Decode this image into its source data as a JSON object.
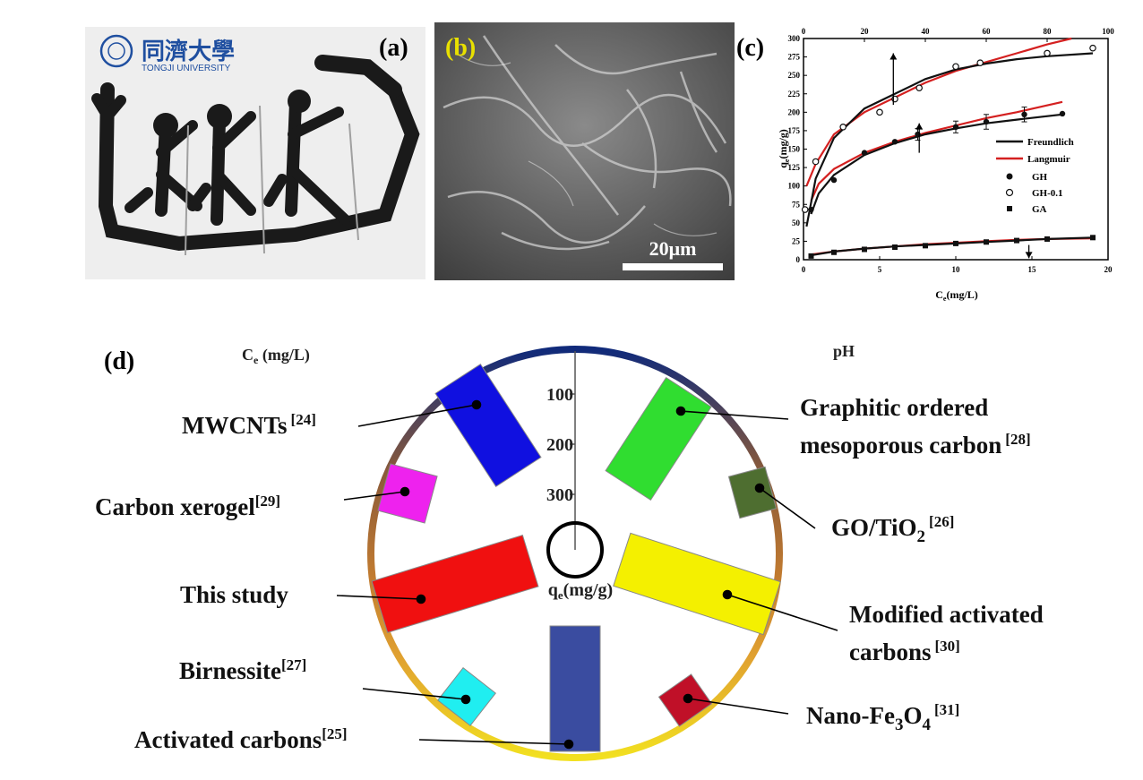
{
  "logo": {
    "chinese_name": "同濟大學",
    "english_name": "TONGJI UNIVERSITY",
    "brand_color": "#1f4fa0"
  },
  "panels": {
    "a": "(a)",
    "b": "(b)",
    "c": "(c)",
    "d": "(d)"
  },
  "sem": {
    "scale_bar_label": "20μm"
  },
  "chart_data": [
    {
      "type": "scatter",
      "panel": "c",
      "ylabel": "qe(mg/g)",
      "ylabel_main": "q",
      "ylabel_sub": "e",
      "ylabel_unit": "(mg/g)",
      "xlabel_main": "C",
      "xlabel_sub": "e",
      "xlabel_unit": "(mg/L)",
      "x_bottom": {
        "range": [
          0,
          20
        ],
        "ticks": [
          "0",
          "5",
          "10",
          "15",
          "20"
        ]
      },
      "x_top": {
        "range": [
          0,
          100
        ],
        "ticks": [
          "0",
          "20",
          "40",
          "60",
          "80",
          "100"
        ]
      },
      "y": {
        "range": [
          0,
          300
        ],
        "ticks": [
          "0",
          "25",
          "50",
          "75",
          "100",
          "125",
          "150",
          "175",
          "200",
          "225",
          "250",
          "275",
          "300"
        ]
      },
      "legend": {
        "position": "right",
        "lines": [
          {
            "label": "Freundlich",
            "color": "#111111"
          },
          {
            "label": "Langmuir",
            "color": "#d42020"
          }
        ],
        "markers": [
          {
            "label": "GH",
            "style": "filled-circle"
          },
          {
            "label": "GH-0.1",
            "style": "open-circle"
          },
          {
            "label": "GA",
            "style": "filled-square"
          }
        ]
      },
      "series": [
        {
          "name": "GH",
          "axis": "bottom",
          "marker": "filled-circle",
          "points": [
            [
              0.5,
              68
            ],
            [
              2,
              108
            ],
            [
              4,
              145
            ],
            [
              6,
              160
            ],
            [
              7.5,
              170
            ],
            [
              10,
              180
            ],
            [
              12,
              187
            ],
            [
              14.5,
              197
            ],
            [
              17,
              198
            ]
          ],
          "error": [
            0,
            0,
            0,
            0,
            8,
            8,
            10,
            10,
            0
          ],
          "freundlich": [
            [
              0.5,
              62
            ],
            [
              1,
              90
            ],
            [
              2,
              115
            ],
            [
              4,
              142
            ],
            [
              6,
              158
            ],
            [
              8,
              170
            ],
            [
              10,
              178
            ],
            [
              12,
              185
            ],
            [
              14,
              190
            ],
            [
              17,
              197
            ]
          ],
          "langmuir": [
            [
              0.5,
              80
            ],
            [
              1,
              103
            ],
            [
              2,
              123
            ],
            [
              4,
              145
            ],
            [
              6,
              160
            ],
            [
              8,
              172
            ],
            [
              10,
              182
            ],
            [
              12,
              192
            ],
            [
              14,
              200
            ],
            [
              17,
              214
            ]
          ]
        },
        {
          "name": "GH-0.1",
          "axis": "top",
          "marker": "open-circle",
          "points": [
            [
              0.5,
              68
            ],
            [
              4,
              133
            ],
            [
              13,
              180
            ],
            [
              25,
              200
            ],
            [
              30,
              218
            ],
            [
              38,
              233
            ],
            [
              50,
              262
            ],
            [
              58,
              267
            ],
            [
              80,
              280
            ],
            [
              95,
              287
            ]
          ],
          "freundlich": [
            [
              1,
              45
            ],
            [
              4,
              110
            ],
            [
              10,
              165
            ],
            [
              20,
              205
            ],
            [
              30,
              225
            ],
            [
              40,
              245
            ],
            [
              50,
              258
            ],
            [
              60,
              266
            ],
            [
              70,
              272
            ],
            [
              80,
              276
            ],
            [
              95,
              280
            ]
          ],
          "langmuir": [
            [
              1,
              100
            ],
            [
              4,
              130
            ],
            [
              10,
              170
            ],
            [
              20,
              200
            ],
            [
              30,
              220
            ],
            [
              40,
              240
            ],
            [
              50,
              256
            ],
            [
              60,
              268
            ],
            [
              70,
              280
            ],
            [
              80,
              292
            ],
            [
              88,
              300
            ]
          ]
        },
        {
          "name": "GA",
          "axis": "bottom",
          "marker": "filled-square",
          "points": [
            [
              0.5,
              5
            ],
            [
              2,
              10
            ],
            [
              4,
              14
            ],
            [
              6,
              17
            ],
            [
              8,
              19
            ],
            [
              10,
              22
            ],
            [
              12,
              24
            ],
            [
              14,
              26
            ],
            [
              16,
              28
            ],
            [
              19,
              30
            ]
          ],
          "freundlich": [
            [
              0.5,
              6
            ],
            [
              2,
              11
            ],
            [
              4,
              15
            ],
            [
              6,
              18
            ],
            [
              8,
              20
            ],
            [
              10,
              22
            ],
            [
              12,
              24
            ],
            [
              14,
              26
            ],
            [
              16,
              28
            ],
            [
              19,
              30
            ]
          ],
          "langmuir": [
            [
              0.5,
              7
            ],
            [
              2,
              11
            ],
            [
              4,
              15
            ],
            [
              6,
              18
            ],
            [
              8,
              21
            ],
            [
              10,
              23
            ],
            [
              12,
              25
            ],
            [
              14,
              27
            ],
            [
              16,
              28
            ],
            [
              19,
              29
            ]
          ]
        }
      ],
      "arrows": [
        {
          "series": "GH-0.1",
          "points_to": "top"
        },
        {
          "series": "GH",
          "points_to": "top"
        },
        {
          "series": "GA",
          "points_to": "bottom"
        }
      ]
    },
    {
      "type": "radial-comparison",
      "panel": "d",
      "corner_labels": {
        "left": "Ce (mg/L)",
        "left_main": "C",
        "left_sub": "e",
        "left_unit": " (mg/L)",
        "right": "pH"
      },
      "center_axis": {
        "label": "qe(mg/g)",
        "label_main": "q",
        "label_sub": "e",
        "label_unit": "(mg/g)",
        "ticks": [
          "100",
          "200",
          "300"
        ],
        "tick_values": [
          100,
          200,
          300
        ]
      },
      "adsorbents": [
        {
          "id": "mwcnts",
          "name": "MWCNTs",
          "ref": "[24]",
          "color": "#1010e0"
        },
        {
          "id": "graphitic",
          "name_line1": "Graphitic ordered",
          "name_line2": "mesoporous carbon",
          "ref": "[28]",
          "color": "#30dd30"
        },
        {
          "id": "xerogel",
          "name": "Carbon xerogel",
          "ref": "[29]",
          "color": "#ee22ee"
        },
        {
          "id": "goti",
          "name_main": "GO/TiO",
          "name_sub": "2",
          "ref": "[26]",
          "color": "#4e6e30"
        },
        {
          "id": "thisstudy",
          "name": "This study",
          "color": "#f01010"
        },
        {
          "id": "modified",
          "name_line1": "Modified activated",
          "name_line2": "carbons",
          "ref": "[30]",
          "color": "#f4f000"
        },
        {
          "id": "birnessite",
          "name": "Birnessite",
          "ref": "[27]",
          "color": "#20eef0"
        },
        {
          "id": "nanofe",
          "name_a": "Nano-Fe",
          "sub_a": "3",
          "name_b": "O",
          "sub_b": "4",
          "ref": "[31]",
          "color": "#c01028"
        },
        {
          "id": "activated",
          "name": "Activated carbons",
          "ref": "[25]",
          "color": "#3a4ca0"
        }
      ]
    }
  ]
}
